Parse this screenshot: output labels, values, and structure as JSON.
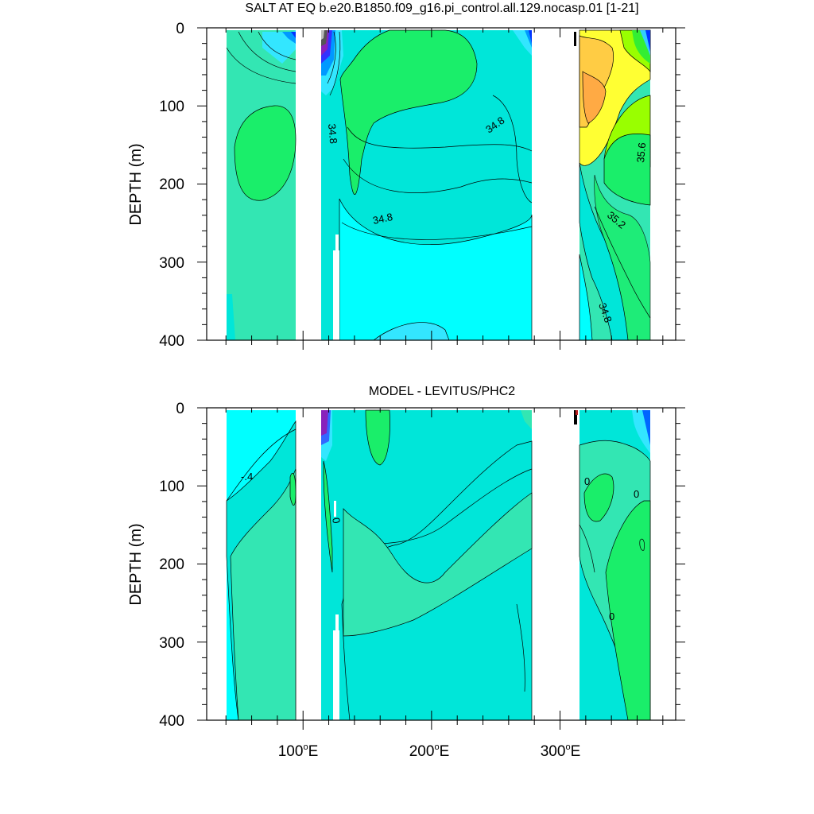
{
  "chart_data": [
    {
      "type": "contour",
      "title": "SALT AT EQ b.e20.B1850.f09_g16.pi_control.all.129.nocasp.01 [1-21]",
      "ylabel": "DEPTH (m)",
      "xlim": [
        25,
        390
      ],
      "ylim": [
        0,
        400
      ],
      "yticks": [
        0,
        100,
        200,
        300,
        400
      ],
      "ytick_labels": [
        "0",
        "100",
        "200",
        "300",
        "400"
      ],
      "contour_labels": [
        {
          "text": "34.8",
          "x": 127,
          "y": 125
        },
        {
          "text": "34.8",
          "x": 252,
          "y": 120
        },
        {
          "text": "34.8",
          "x": 176,
          "y": 240
        },
        {
          "text": "35.6",
          "x": 383,
          "y": 155
        },
        {
          "text": "35.2",
          "x": 365,
          "y": 255
        },
        {
          "text": "34.8",
          "x": 345,
          "y": 372
        }
      ]
    },
    {
      "type": "contour",
      "title": "MODEL - LEVITUS/PHC2",
      "ylabel": "DEPTH (m)",
      "xlim": [
        25,
        390
      ],
      "ylim": [
        0,
        400
      ],
      "yticks": [
        0,
        100,
        200,
        300,
        400
      ],
      "ytick_labels": [
        "0",
        "100",
        "200",
        "300",
        "400"
      ],
      "xticks": [
        100,
        200,
        300
      ],
      "xtick_labels": [
        {
          "num": "100",
          "sup": "o",
          "suf": "E"
        },
        {
          "num": "200",
          "sup": "o",
          "suf": "E"
        },
        {
          "num": "300",
          "sup": "o",
          "suf": "E"
        }
      ],
      "contour_labels": [
        {
          "text": "-.4",
          "x": 58,
          "y": 92
        },
        {
          "text": "0",
          "x": 127,
          "y": 140
        },
        {
          "text": "0",
          "x": 339,
          "y": 95
        },
        {
          "text": "0",
          "x": 383,
          "y": 110
        },
        {
          "text": "0",
          "x": 358,
          "y": 270
        }
      ]
    }
  ],
  "colors": {
    "teal_green": "#33e6b3",
    "aqua": "#00e6d9",
    "cyan": "#00ffff",
    "light_blue": "#33e6ff",
    "green": "#1aee6a",
    "yellow_green": "#99ff00",
    "yellow": "#ffff33",
    "orange": "#ffcc44",
    "blue": "#0033ff",
    "purple": "#8822bb"
  }
}
